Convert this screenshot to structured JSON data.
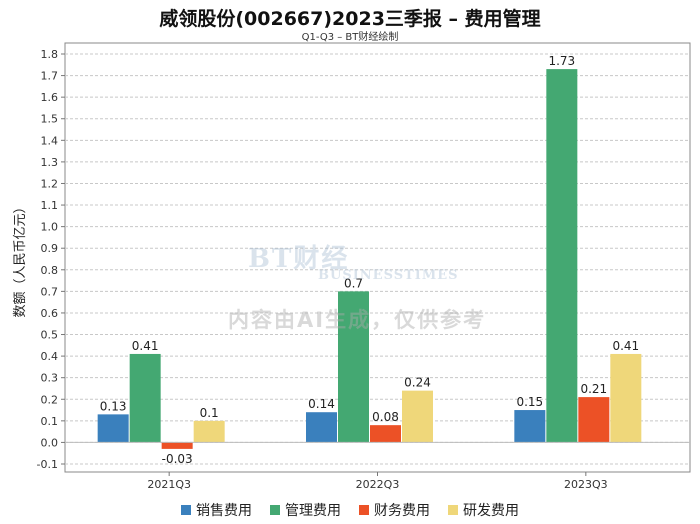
{
  "title": "威领股份(002667)2023三季报 – 费用管理",
  "subtitle": "Q1-Q3 – BT财经绘制",
  "watermark": {
    "brand": "BT财经",
    "brand_sub": "BUSINESSTIMES",
    "ai_notice": "内容由AI生成，仅供参考"
  },
  "chart_data": {
    "type": "bar",
    "title": "威领股份(002667)2023三季报 – 费用管理",
    "subtitle": "Q1-Q3 – BT财经绘制",
    "xlabel": "",
    "ylabel": "数额（人民币亿元）",
    "categories": [
      "2021Q3",
      "2022Q3",
      "2023Q3"
    ],
    "series": [
      {
        "name": "销售费用",
        "color": "#3a80bd",
        "values": [
          0.13,
          0.14,
          0.15
        ]
      },
      {
        "name": "管理费用",
        "color": "#44a872",
        "values": [
          0.41,
          0.7,
          1.73
        ]
      },
      {
        "name": "财务费用",
        "color": "#ec5126",
        "values": [
          -0.03,
          0.08,
          0.21
        ]
      },
      {
        "name": "研发费用",
        "color": "#efd77a",
        "values": [
          0.1,
          0.24,
          0.41
        ]
      }
    ],
    "data_labels": [
      [
        "0.13",
        "0.14",
        "0.15"
      ],
      [
        "0.41",
        "0.7",
        "1.73"
      ],
      [
        "-0.03",
        "0.08",
        "0.21"
      ],
      [
        "0.1",
        "0.24",
        "0.41"
      ]
    ],
    "ylim": [
      -0.1,
      1.8
    ],
    "yticks": [
      "-0.1",
      "0.0",
      "0.1",
      "0.2",
      "0.3",
      "0.4",
      "0.5",
      "0.6",
      "0.7",
      "0.8",
      "0.9",
      "1.0",
      "1.1",
      "1.2",
      "1.3",
      "1.4",
      "1.5",
      "1.6",
      "1.7",
      "1.8"
    ],
    "grid": true,
    "legend_position": "bottom"
  }
}
